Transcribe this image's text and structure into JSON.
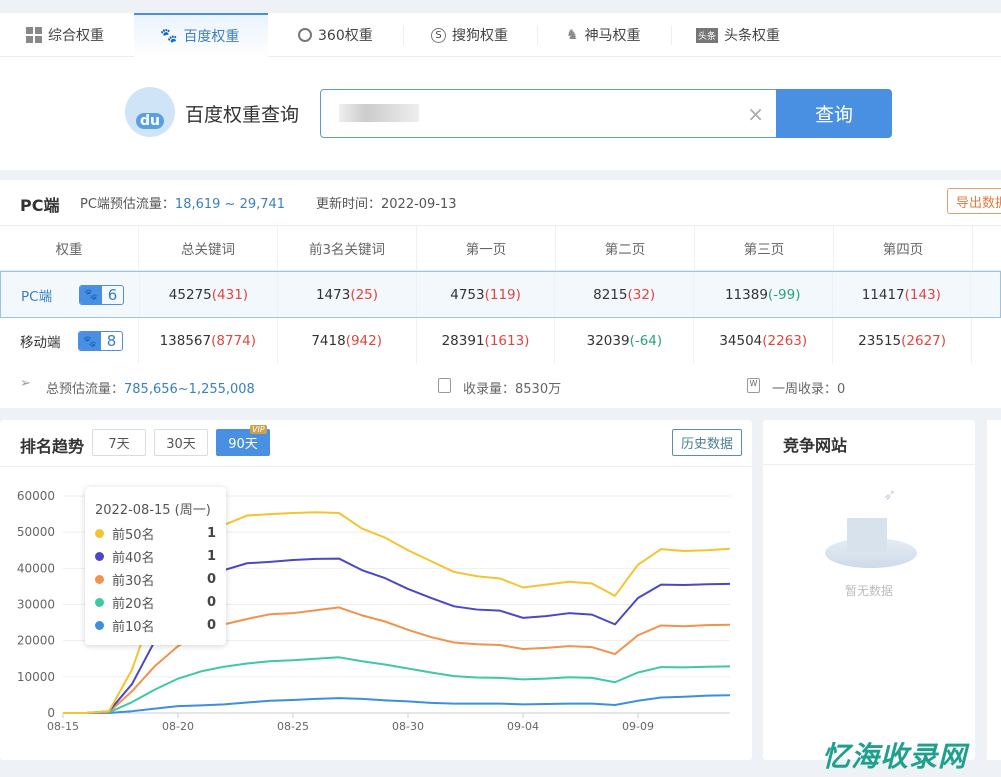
{
  "tabs": [
    {
      "label": "综合权重",
      "icon": "grid-icon"
    },
    {
      "label": "百度权重",
      "icon": "baidu-paw-icon",
      "active": true
    },
    {
      "label": "360权重",
      "icon": "360-icon"
    },
    {
      "label": "搜狗权重",
      "icon": "sogou-icon"
    },
    {
      "label": "神马权重",
      "icon": "shenma-icon"
    },
    {
      "label": "头条权重",
      "icon": "toutiao-icon"
    }
  ],
  "search": {
    "title": "百度权重查询",
    "logo_text": "du",
    "value": "",
    "button": "查询"
  },
  "stats": {
    "title": "PC端",
    "traffic_label": "PC端预估流量：",
    "traffic_value": "18,619 ~ 29,741",
    "update_label": "更新时间：",
    "update_value": "2022-09-13",
    "export": "导出数据"
  },
  "table": {
    "headers": [
      "权重",
      "总关键词",
      "前3名关键词",
      "第一页",
      "第二页",
      "第三页",
      "第四页"
    ],
    "rows": [
      {
        "label": "PC端",
        "weight": "6",
        "cells": [
          [
            "45275",
            "(431)",
            "red"
          ],
          [
            "1473",
            "(25)",
            "red"
          ],
          [
            "4753",
            "(119)",
            "red"
          ],
          [
            "8215",
            "(32)",
            "red"
          ],
          [
            "11389",
            "(-99)",
            "green"
          ],
          [
            "11417",
            "(143)",
            "red"
          ]
        ]
      },
      {
        "label": "移动端",
        "weight": "8",
        "cells": [
          [
            "138567",
            "(8774)",
            "red"
          ],
          [
            "7418",
            "(942)",
            "red"
          ],
          [
            "28391",
            "(1613)",
            "red"
          ],
          [
            "32039",
            "(-64)",
            "green"
          ],
          [
            "34504",
            "(2263)",
            "red"
          ],
          [
            "23515",
            "(2627)",
            "red"
          ]
        ]
      }
    ]
  },
  "summary": {
    "total_label": "总预估流量：",
    "total_value": "785,656~1,255,008",
    "index_label": "收录量：",
    "index_value": "8530万",
    "week_label": "一周收录：",
    "week_value": "0"
  },
  "trend": {
    "title": "排名趋势",
    "ranges": [
      "7天",
      "30天",
      "90天"
    ],
    "active_range": "90天",
    "vip": "VIP",
    "history": "历史数据",
    "tooltip": {
      "date": "2022-08-15 (周一)",
      "items": [
        {
          "name": "前50名",
          "value": "1",
          "color": "#f4c430"
        },
        {
          "name": "前40名",
          "value": "1",
          "color": "#4b48c8"
        },
        {
          "name": "前30名",
          "value": "0",
          "color": "#f0934e"
        },
        {
          "name": "前20名",
          "value": "0",
          "color": "#3cc9a4"
        },
        {
          "name": "前10名",
          "value": "0",
          "color": "#3b8fde"
        }
      ]
    }
  },
  "competitors": {
    "title": "竞争网站",
    "empty": "暂无数据"
  },
  "watermark": "忆海收录网",
  "chart_data": {
    "type": "line",
    "x_ticks": [
      "08-15",
      "08-20",
      "08-25",
      "08-30",
      "09-04",
      "09-09"
    ],
    "x_start": "2022-08-15",
    "x_end": "2022-09-13",
    "y_ticks": [
      "0",
      "10000",
      "20000",
      "30000",
      "40000",
      "50000",
      "60000"
    ],
    "ylim": [
      0,
      60000
    ],
    "grid": true,
    "series": [
      {
        "name": "前50名",
        "color": "#f4c430",
        "values": [
          0,
          0,
          500,
          12000,
          30000,
          44000,
          48000,
          52000,
          54600,
          55000,
          55300,
          55500,
          55300,
          51000,
          48500,
          45000,
          42000,
          39000,
          37800,
          37200,
          34700,
          35500,
          36300,
          35800,
          32400,
          41000,
          45300,
          44800,
          45000,
          45400
        ]
      },
      {
        "name": "前40名",
        "color": "#4b48c8",
        "values": [
          0,
          0,
          500,
          8000,
          20000,
          33000,
          37000,
          39500,
          41400,
          41800,
          42300,
          42600,
          42700,
          39500,
          37300,
          34300,
          31800,
          29500,
          28600,
          28300,
          26300,
          26800,
          27600,
          27200,
          24500,
          31800,
          35500,
          35400,
          35600,
          35700
        ]
      },
      {
        "name": "前30名",
        "color": "#f0934e",
        "values": [
          0,
          0,
          300,
          6000,
          13000,
          18500,
          22000,
          24500,
          26000,
          27300,
          27600,
          28400,
          29200,
          27000,
          25300,
          23000,
          21000,
          19500,
          19000,
          18800,
          17700,
          18000,
          18500,
          18200,
          16300,
          21500,
          24200,
          24000,
          24300,
          24400
        ]
      },
      {
        "name": "前20名",
        "color": "#3cc9a4",
        "values": [
          0,
          0,
          200,
          3000,
          6500,
          9500,
          11500,
          12800,
          13700,
          14300,
          14600,
          15000,
          15400,
          14300,
          13400,
          12300,
          11200,
          10200,
          9800,
          9700,
          9300,
          9500,
          9900,
          9700,
          8500,
          11200,
          12700,
          12600,
          12800,
          12900
        ]
      },
      {
        "name": "前10名",
        "color": "#3b8fde",
        "values": [
          0,
          0,
          0,
          500,
          1200,
          1900,
          2100,
          2400,
          2900,
          3400,
          3600,
          3900,
          4100,
          3900,
          3500,
          3200,
          2800,
          2600,
          2600,
          2600,
          2400,
          2500,
          2600,
          2600,
          2200,
          3400,
          4300,
          4500,
          4800,
          4900
        ]
      }
    ]
  }
}
